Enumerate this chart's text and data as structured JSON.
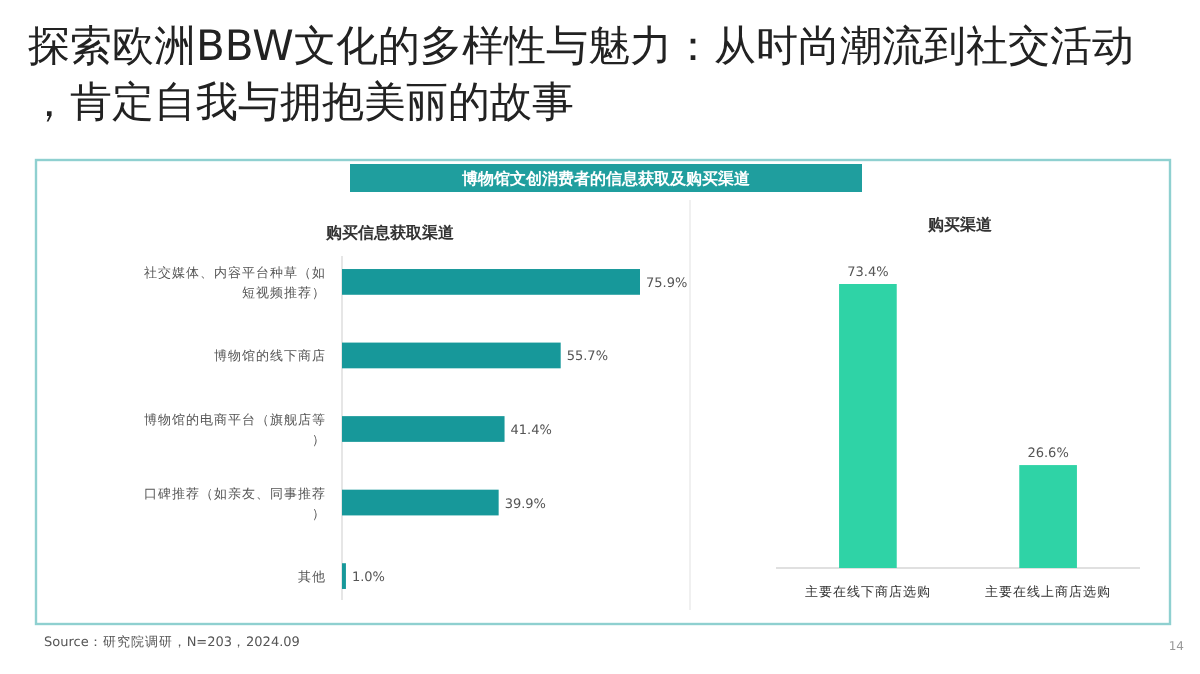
{
  "chart_data": [
    {
      "type": "bar",
      "orientation": "horizontal",
      "title": "购买信息获取渠道",
      "categories": [
        "社交媒体、内容平台种草（如短视频推荐）",
        "博物馆的线下商店",
        "博物馆的电商平台（旗舰店等）",
        "口碑推荐（如亲友、同事推荐）",
        "其他"
      ],
      "values": [
        75.9,
        55.7,
        41.4,
        39.9,
        1.0
      ],
      "value_labels": [
        "75.9%",
        "55.7%",
        "41.4%",
        "39.9%",
        "1.0%"
      ],
      "color": "#17989a",
      "annotations": [
        "探索欧洲BBW文化的多样性与魅力：从时尚潮流到社交活动，肯定自我与拥抱美丽的故事",
        "博物馆文创消费者的信息获取及购买渠道",
        "Source：研究院调研，N=203，2024.09",
        "14"
      ]
    },
    {
      "type": "bar",
      "title": "购买渠道",
      "categories": [
        "主要在线下商店选购",
        "主要在线上商店选购"
      ],
      "values": [
        73.4,
        26.6
      ],
      "value_labels": [
        "73.4%",
        "26.6%"
      ],
      "color": "#2fd3a6"
    }
  ]
}
